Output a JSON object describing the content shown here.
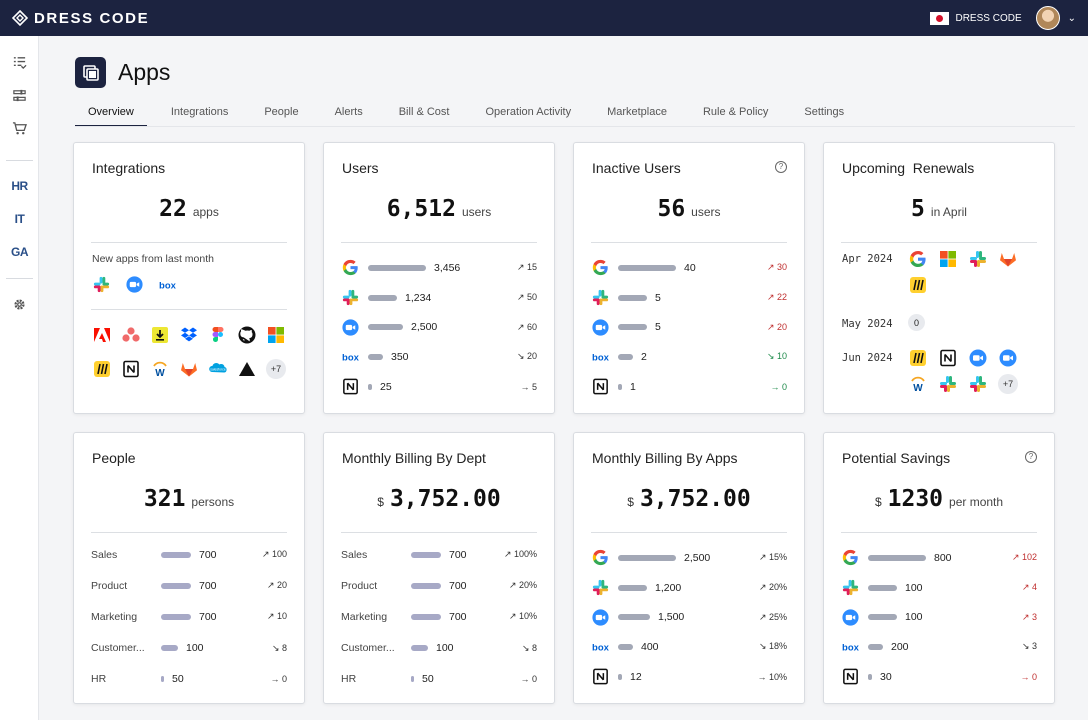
{
  "brand": {
    "name": "DRESS CODE"
  },
  "header": {
    "org": "DRESS CODE"
  },
  "sidebar": {
    "text_items": [
      "HR",
      "IT",
      "GA"
    ]
  },
  "page": {
    "title": "Apps"
  },
  "tabs": [
    "Overview",
    "Integrations",
    "People",
    "Alerts",
    "Bill & Cost",
    "Operation Activity",
    "Marketplace",
    "Rule & Policy",
    "Settings"
  ],
  "integrations": {
    "title": "Integrations",
    "count": "22",
    "unit": "apps",
    "new_label": "New apps from last month",
    "new_apps": [
      "slack",
      "zoom",
      "box"
    ],
    "apps": [
      "adobe",
      "asana",
      "downloader",
      "dropbox",
      "figma",
      "github",
      "microsoft",
      "miro",
      "notion",
      "workday",
      "gitlab",
      "salesforce",
      "vercel"
    ],
    "more": "+7"
  },
  "users": {
    "title": "Users",
    "count": "6,512",
    "unit": "users",
    "rows": [
      {
        "app": "google",
        "value": "3,456",
        "trend": "↗ 15",
        "fill": 1.0
      },
      {
        "app": "slack",
        "value": "1,234",
        "trend": "↗ 50",
        "fill": 0.5
      },
      {
        "app": "zoom",
        "value": "2,500",
        "trend": "↗ 60",
        "fill": 0.6
      },
      {
        "app": "box",
        "value": "350",
        "trend": "↘ 20",
        "fill": 0.25
      },
      {
        "app": "notion",
        "value": "25",
        "trend": "→ 5",
        "fill": 0.06
      }
    ]
  },
  "inactive": {
    "title": "Inactive Users",
    "help": "?",
    "count": "56",
    "unit": "users",
    "rows": [
      {
        "app": "google",
        "value": "40",
        "trend": "↗ 30",
        "fill": 1.0,
        "trend_class": "up-red"
      },
      {
        "app": "slack",
        "value": "5",
        "trend": "↗ 22",
        "fill": 0.5,
        "trend_class": "up-red"
      },
      {
        "app": "zoom",
        "value": "5",
        "trend": "↗ 20",
        "fill": 0.5,
        "trend_class": "up-red"
      },
      {
        "app": "box",
        "value": "2",
        "trend": "↘ 10",
        "fill": 0.25,
        "trend_class": "down-green"
      },
      {
        "app": "notion",
        "value": "1",
        "trend": "→ 0",
        "fill": 0.06,
        "trend_class": "flat-green"
      }
    ]
  },
  "renewals": {
    "title": "Upcoming  Renewals",
    "count": "5",
    "unit": "in April",
    "months": [
      {
        "date": "Apr 2024",
        "apps": [
          "google",
          "microsoft",
          "slack",
          "gitlab",
          "miro"
        ]
      },
      {
        "date": "May 2024",
        "zero": "0"
      },
      {
        "date": "Jun 2024",
        "apps": [
          "miro",
          "notion",
          "zoom",
          "zoom",
          "workday",
          "slack",
          "slack"
        ],
        "more": "+7"
      }
    ]
  },
  "people": {
    "title": "People",
    "count": "321",
    "unit": "persons",
    "rows": [
      {
        "label": "Sales",
        "value": "700",
        "trend": "↗ 100",
        "fill": 1.0
      },
      {
        "label": "Product",
        "value": "700",
        "trend": "↗ 20",
        "fill": 1.0
      },
      {
        "label": "Marketing",
        "value": "700",
        "trend": "↗ 10",
        "fill": 1.0
      },
      {
        "label": "Customer...",
        "value": "100",
        "trend": "↘ 8",
        "fill": 0.55
      },
      {
        "label": "HR",
        "value": "50",
        "trend": "→ 0",
        "fill": 0.1
      }
    ]
  },
  "billing_dept": {
    "title": "Monthly Billing By Dept",
    "currency": "$",
    "amount": "3,752.00",
    "rows": [
      {
        "label": "Sales",
        "value": "700",
        "trend": "↗ 100%",
        "fill": 1.0
      },
      {
        "label": "Product",
        "value": "700",
        "trend": "↗ 20%",
        "fill": 1.0
      },
      {
        "label": "Marketing",
        "value": "700",
        "trend": "↗ 10%",
        "fill": 1.0
      },
      {
        "label": "Customer...",
        "value": "100",
        "trend": "↘ 8",
        "fill": 0.55
      },
      {
        "label": "HR",
        "value": "50",
        "trend": "→ 0",
        "fill": 0.1
      }
    ]
  },
  "billing_apps": {
    "title": "Monthly Billing By Apps",
    "currency": "$",
    "amount": "3,752.00",
    "rows": [
      {
        "app": "google",
        "value": "2,500",
        "trend": "↗ 15%",
        "fill": 1.0
      },
      {
        "app": "slack",
        "value": "1,200",
        "trend": "↗ 20%",
        "fill": 0.5
      },
      {
        "app": "zoom",
        "value": "1,500",
        "trend": "↗ 25%",
        "fill": 0.55
      },
      {
        "app": "box",
        "value": "400",
        "trend": "↘ 18%",
        "fill": 0.25
      },
      {
        "app": "notion",
        "value": "12",
        "trend": "→ 10%",
        "fill": 0.06
      }
    ]
  },
  "savings": {
    "title": "Potential Savings",
    "help": "?",
    "currency": "$",
    "amount": "1230",
    "unit": "per month",
    "rows": [
      {
        "app": "google",
        "value": "800",
        "trend": "↗ 102",
        "fill": 1.0,
        "trend_class": "up-red"
      },
      {
        "app": "slack",
        "value": "100",
        "trend": "↗ 4",
        "fill": 0.5,
        "trend_class": "up-red"
      },
      {
        "app": "zoom",
        "value": "100",
        "trend": "↗ 3",
        "fill": 0.5,
        "trend_class": "up-red"
      },
      {
        "app": "box",
        "value": "200",
        "trend": "↘ 3",
        "fill": 0.25,
        "trend_class": "flat"
      },
      {
        "app": "notion",
        "value": "30",
        "trend": "→ 0",
        "fill": 0.06,
        "trend_class": "flat-red"
      }
    ]
  }
}
